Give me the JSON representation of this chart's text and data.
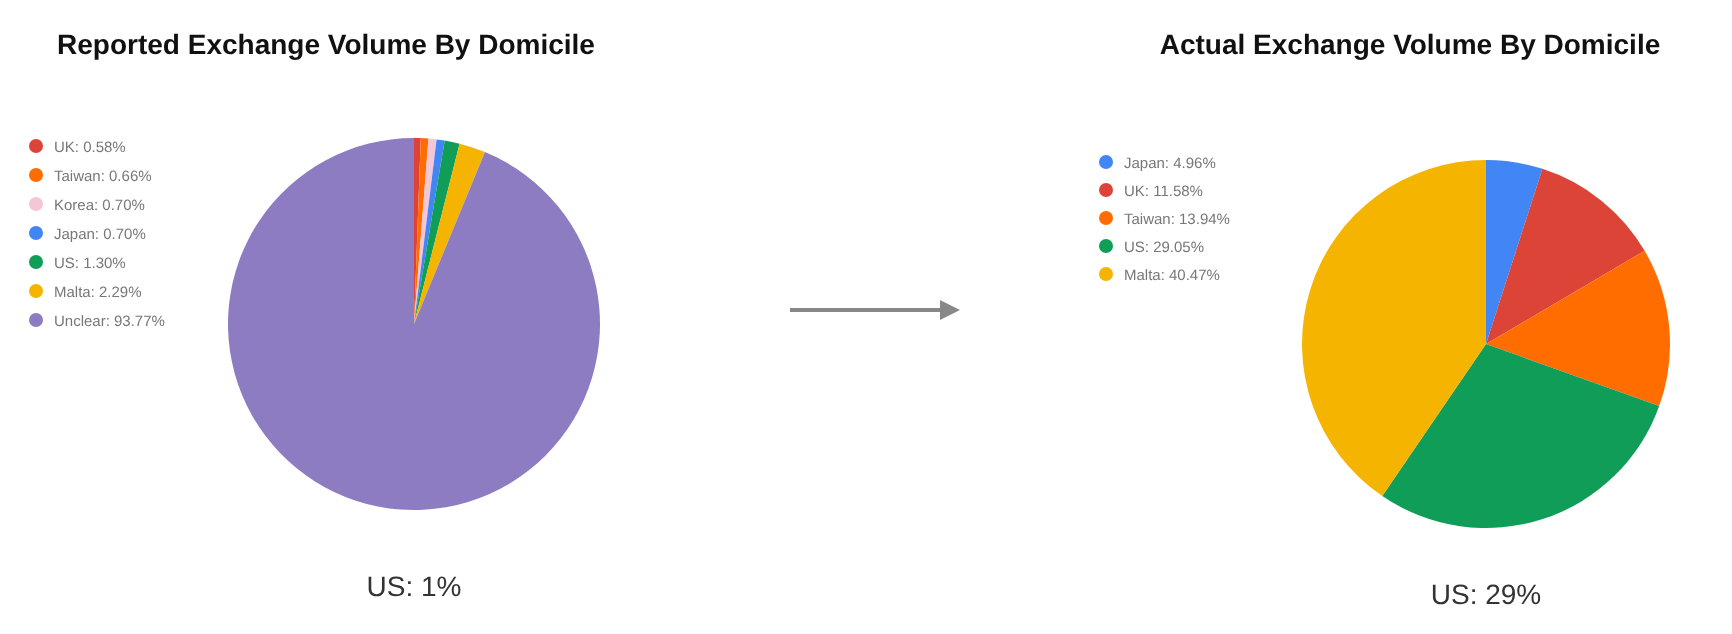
{
  "chart_data": [
    {
      "type": "pie",
      "title": "Reported Exchange Volume By Domicile",
      "categories": [
        "UK: 0.58%",
        "Taiwan: 0.66%",
        "Korea: 0.70%",
        "Japan: 0.70%",
        "US: 1.30%",
        "Malta: 2.29%",
        "Unclear: 93.77%"
      ],
      "values": [
        0.58,
        0.66,
        0.7,
        0.7,
        1.3,
        2.29,
        93.77
      ],
      "colors": [
        "#db4437",
        "#ff6d01",
        "#f4c7d7",
        "#4285f4",
        "#0f9d58",
        "#f4b400",
        "#8e7cc3"
      ],
      "legend": "left",
      "annotations": [
        "US: 1%"
      ]
    },
    {
      "type": "pie",
      "title": "Actual Exchange Volume By Domicile",
      "categories": [
        "Japan: 4.96%",
        "UK: 11.58%",
        "Taiwan: 13.94%",
        "US: 29.05%",
        "Malta: 40.47%"
      ],
      "values": [
        4.96,
        11.58,
        13.94,
        29.05,
        40.47
      ],
      "colors": [
        "#4285f4",
        "#db4437",
        "#ff6d01",
        "#0f9d58",
        "#f4b400"
      ],
      "legend": "left",
      "annotations": [
        "US: 29%"
      ]
    }
  ]
}
